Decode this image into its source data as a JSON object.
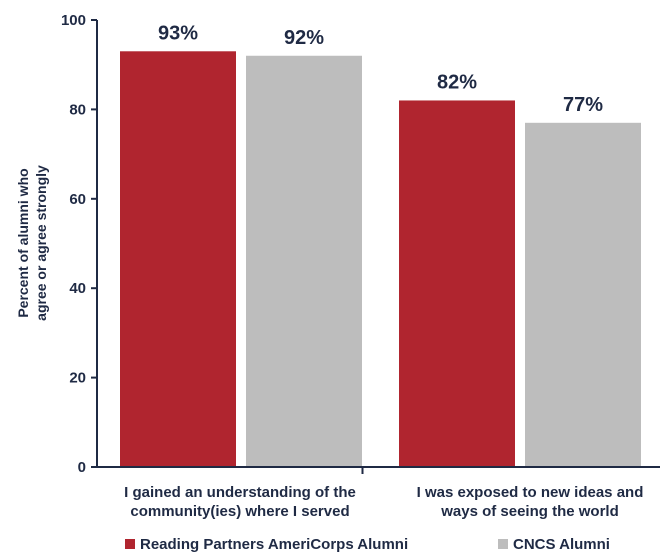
{
  "chart_data": {
    "type": "bar",
    "categories": [
      [
        "I gained an understanding of the",
        "community(ies) where I served"
      ],
      [
        "I was exposed to new ideas and",
        "ways of seeing the world"
      ]
    ],
    "series": [
      {
        "name": "Reading Partners AmeriCorps Alumni",
        "values": [
          93,
          82
        ],
        "labels": [
          "93%",
          "82%"
        ],
        "color": "#b0252f"
      },
      {
        "name": "CNCS Alumni",
        "values": [
          92,
          77
        ],
        "labels": [
          "92%",
          "77%"
        ],
        "color": "#bdbdbd"
      }
    ],
    "ylabel": [
      "Percent of alumni who",
      "agree or agree strongly"
    ],
    "ylim": [
      0,
      100
    ],
    "yticks": [
      0,
      20,
      40,
      60,
      80,
      100
    ],
    "grid": false,
    "legend": "bottom",
    "axis_color": "#1f2a44"
  }
}
